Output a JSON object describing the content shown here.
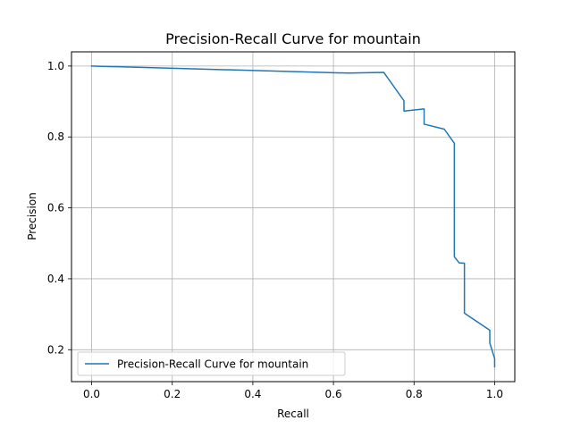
{
  "chart_data": {
    "type": "line",
    "title": "Precision-Recall Curve for mountain",
    "xlabel": "Recall",
    "ylabel": "Precision",
    "xlim": [
      -0.05,
      1.05
    ],
    "ylim": [
      0.11,
      1.04
    ],
    "xticks": [
      0.0,
      0.2,
      0.4,
      0.6,
      0.8,
      1.0
    ],
    "yticks": [
      0.2,
      0.4,
      0.6,
      0.8,
      1.0
    ],
    "xtick_labels": [
      "0.0",
      "0.2",
      "0.4",
      "0.6",
      "0.8",
      "1.0"
    ],
    "ytick_labels": [
      "0.2",
      "0.4",
      "0.6",
      "0.8",
      "1.0"
    ],
    "grid": true,
    "legend_position": "lower-left",
    "series": [
      {
        "name": "Precision-Recall Curve for mountain",
        "color": "#1f77b4",
        "x": [
          0.0,
          0.638,
          0.725,
          0.775,
          0.775,
          0.825,
          0.825,
          0.875,
          0.9,
          0.9,
          0.912,
          0.925,
          0.925,
          0.95,
          0.988,
          0.988,
          1.0,
          1.0
        ],
        "y": [
          1.0,
          0.98,
          0.982,
          0.902,
          0.873,
          0.879,
          0.836,
          0.822,
          0.782,
          0.462,
          0.445,
          0.444,
          0.303,
          0.284,
          0.255,
          0.219,
          0.175,
          0.152
        ]
      }
    ]
  }
}
